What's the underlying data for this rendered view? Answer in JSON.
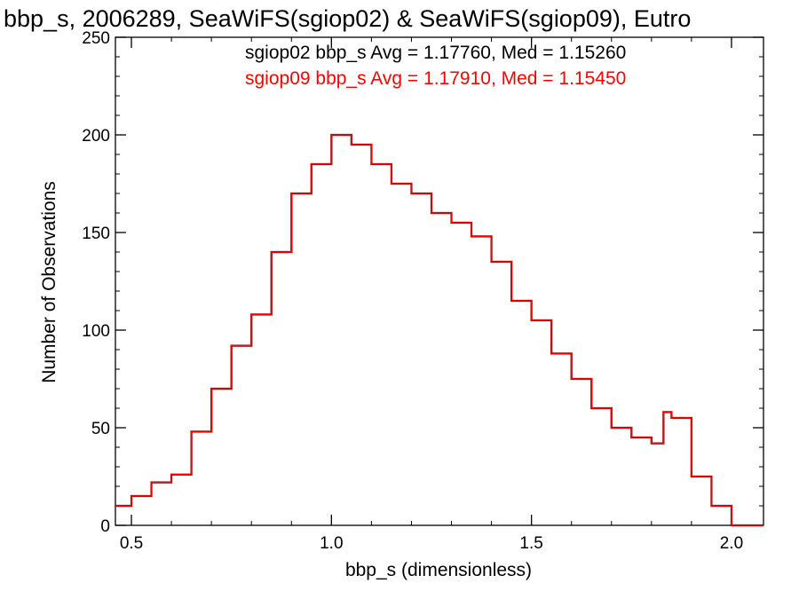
{
  "chart_data": {
    "type": "line",
    "title": "bbp_s, 2006289, SeaWiFS(sgiop02) & SeaWiFS(sgiop09), Eutro",
    "xlabel": "bbp_s (dimensionless)",
    "ylabel": "Number of Observations",
    "xlim": [
      0.46,
      2.08
    ],
    "ylim": [
      0,
      250
    ],
    "xticks": [
      "0.5",
      "1.0",
      "1.5",
      "2.0"
    ],
    "xtick_values": [
      0.5,
      1.0,
      1.5,
      2.0
    ],
    "yticks": [
      "0",
      "50",
      "100",
      "150",
      "200",
      "250"
    ],
    "ytick_values": [
      0,
      50,
      100,
      150,
      200,
      250
    ],
    "grid": false,
    "legend": [
      {
        "text": "sgiop02 bbp_s Avg = 1.17760, Med = 1.15260",
        "color": "#000000"
      },
      {
        "text": "sgiop09 bbp_s Avg = 1.17910, Med = 1.15450",
        "color": "#ff0000"
      }
    ],
    "series": [
      {
        "color": "#000000",
        "x": [
          0.46,
          0.5,
          0.55,
          0.6,
          0.65,
          0.7,
          0.75,
          0.8,
          0.85,
          0.9,
          0.95,
          1.0,
          1.05,
          1.1,
          1.15,
          1.2,
          1.25,
          1.3,
          1.35,
          1.4,
          1.45,
          1.5,
          1.55,
          1.6,
          1.65,
          1.7,
          1.75,
          1.8,
          1.83,
          1.85,
          1.9,
          1.95,
          2.0,
          2.08
        ],
        "y": [
          10,
          15,
          22,
          26,
          48,
          70,
          92,
          108,
          140,
          170,
          185,
          200,
          195,
          185,
          175,
          170,
          160,
          155,
          148,
          135,
          115,
          105,
          88,
          75,
          60,
          50,
          45,
          42,
          58,
          55,
          25,
          10,
          0,
          0
        ]
      },
      {
        "color": "#ff0000",
        "x": [
          0.46,
          0.5,
          0.55,
          0.6,
          0.65,
          0.7,
          0.75,
          0.8,
          0.85,
          0.9,
          0.95,
          1.0,
          1.05,
          1.1,
          1.15,
          1.2,
          1.25,
          1.3,
          1.35,
          1.4,
          1.45,
          1.5,
          1.55,
          1.6,
          1.65,
          1.7,
          1.75,
          1.8,
          1.83,
          1.85,
          1.9,
          1.95,
          2.0,
          2.08
        ],
        "y": [
          10,
          15,
          22,
          26,
          48,
          70,
          92,
          108,
          140,
          170,
          185,
          200,
          195,
          185,
          175,
          170,
          160,
          155,
          148,
          135,
          115,
          105,
          88,
          75,
          60,
          50,
          45,
          42,
          58,
          55,
          25,
          10,
          0,
          0
        ]
      }
    ]
  }
}
